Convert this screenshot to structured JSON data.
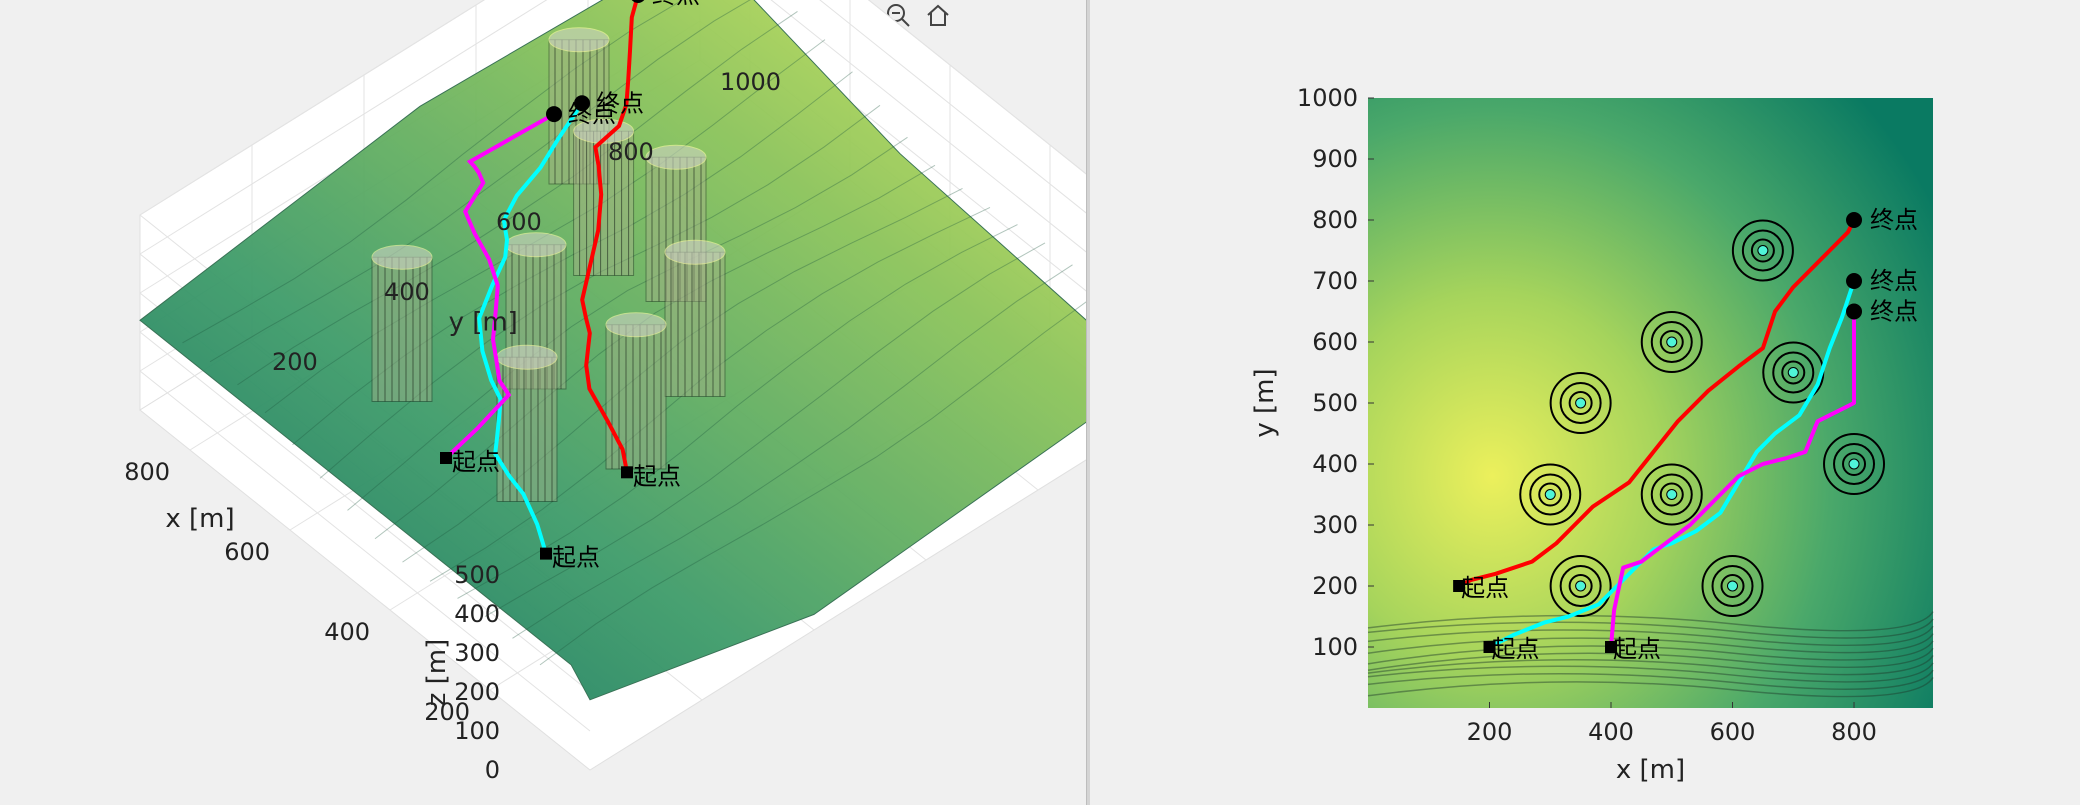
{
  "toolbar": {
    "icons": [
      "brush-edit-icon",
      "data-tips-icon",
      "legend-icon",
      "rotate-3d-icon",
      "pan-icon",
      "zoom-in-icon",
      "zoom-out-icon",
      "home-icon"
    ],
    "active": "rotate-3d-icon",
    "active_color": "#1e88e5"
  },
  "chart_data": [
    {
      "type": "surface",
      "view": "3d",
      "xlabel": "x [m]",
      "ylabel": "y [m]",
      "zlabel": "z [m]",
      "x_ticks": [
        "200",
        "400",
        "600",
        "800"
      ],
      "y_ticks": [
        "200",
        "400",
        "600",
        "800",
        "1000"
      ],
      "z_ticks": [
        "0",
        "100",
        "200",
        "300",
        "400",
        "500"
      ],
      "xlim": [
        0,
        900
      ],
      "ylim": [
        0,
        1000
      ],
      "zlim": [
        0,
        500
      ],
      "grid": true,
      "colormap": [
        "#0a6e5e",
        "#3f9c6a",
        "#8cc45a",
        "#e6ef5c"
      ],
      "threat_cylinders": [
        {
          "x": 750,
          "y": 650
        },
        {
          "x": 600,
          "y": 560
        },
        {
          "x": 500,
          "y": 600
        },
        {
          "x": 350,
          "y": 500
        },
        {
          "x": 300,
          "y": 350
        },
        {
          "x": 500,
          "y": 350
        },
        {
          "x": 350,
          "y": 200
        },
        {
          "x": 600,
          "y": 200
        }
      ],
      "series": [
        {
          "color": "#ff0000",
          "start_label": "起点",
          "end_label": "终点"
        },
        {
          "color": "#00ffff",
          "start_label": "起点",
          "end_label": "终点"
        },
        {
          "color": "#ff00ff",
          "start_label": "起点",
          "end_label": "终点"
        }
      ]
    },
    {
      "type": "heatmap",
      "view": "top",
      "xlabel": "x [m]",
      "ylabel": "y [m]",
      "x_ticks": [
        "200",
        "400",
        "600",
        "800"
      ],
      "y_ticks": [
        "100",
        "200",
        "300",
        "400",
        "500",
        "600",
        "700",
        "800",
        "900",
        "1000"
      ],
      "xlim": [
        0,
        930
      ],
      "ylim": [
        0,
        1000
      ],
      "colormap": [
        "#0a7a62",
        "#4aa86a",
        "#a6d45c",
        "#ecf05c"
      ],
      "threats": [
        {
          "x": 650,
          "y": 750
        },
        {
          "x": 500,
          "y": 600
        },
        {
          "x": 350,
          "y": 500
        },
        {
          "x": 700,
          "y": 550
        },
        {
          "x": 300,
          "y": 350
        },
        {
          "x": 500,
          "y": 350
        },
        {
          "x": 800,
          "y": 400
        },
        {
          "x": 350,
          "y": 200
        },
        {
          "x": 600,
          "y": 200
        }
      ],
      "series": [
        {
          "color": "#ff0000",
          "x": [
            150,
            170,
            210,
            270,
            310,
            340,
            370,
            400,
            430,
            470,
            510,
            560,
            610,
            650,
            670,
            700,
            730,
            760,
            790,
            800
          ],
          "y": [
            200,
            210,
            220,
            240,
            270,
            300,
            330,
            350,
            370,
            420,
            470,
            520,
            560,
            590,
            650,
            690,
            720,
            750,
            780,
            800
          ],
          "start": {
            "x": 150,
            "y": 200,
            "label": "起点"
          },
          "end": {
            "x": 800,
            "y": 800,
            "label": "终点"
          }
        },
        {
          "color": "#00ffff",
          "x": [
            200,
            240,
            290,
            330,
            380,
            410,
            440,
            470,
            500,
            540,
            580,
            610,
            640,
            670,
            710,
            740,
            760,
            780,
            800
          ],
          "y": [
            100,
            120,
            140,
            150,
            170,
            200,
            230,
            260,
            270,
            290,
            320,
            370,
            420,
            450,
            480,
            530,
            590,
            640,
            700
          ],
          "start": {
            "x": 200,
            "y": 100,
            "label": "起点"
          },
          "end": {
            "x": 800,
            "y": 700,
            "label": "终点"
          }
        },
        {
          "color": "#ff00ff",
          "x": [
            400,
            405,
            420,
            450,
            490,
            530,
            570,
            610,
            650,
            690,
            720,
            740,
            760,
            780,
            800,
            800
          ],
          "y": [
            100,
            160,
            230,
            240,
            270,
            300,
            340,
            380,
            400,
            410,
            420,
            470,
            480,
            490,
            500,
            650
          ],
          "start": {
            "x": 400,
            "y": 100,
            "label": "起点"
          },
          "end": {
            "x": 800,
            "y": 650,
            "label": "终点"
          }
        }
      ]
    }
  ]
}
